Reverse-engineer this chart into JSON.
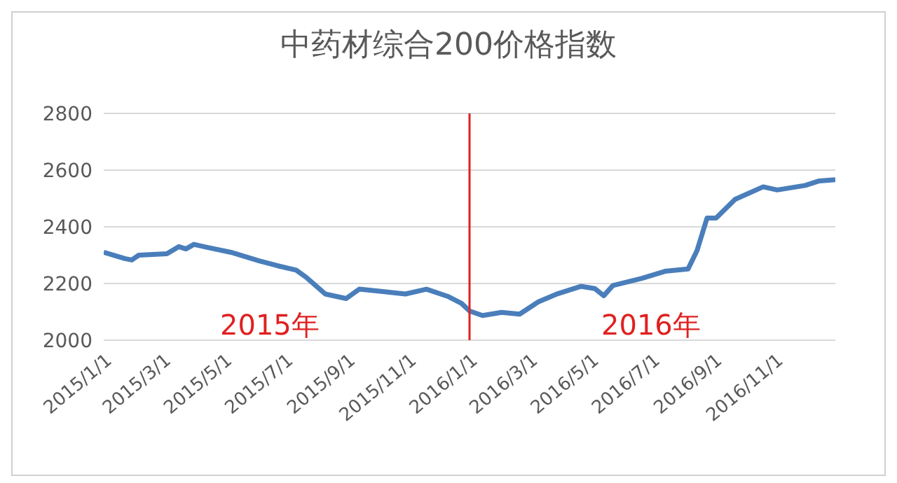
{
  "chart_data": {
    "type": "line",
    "title": "中药材综合200价格指数",
    "x": [
      "2015-01-01",
      "2015-01-22",
      "2015-01-29",
      "2015-02-05",
      "2015-03-05",
      "2015-03-17",
      "2015-03-24",
      "2015-04-01",
      "2015-04-15",
      "2015-05-08",
      "2015-06-05",
      "2015-06-23",
      "2015-07-12",
      "2015-07-22",
      "2015-08-10",
      "2015-08-31",
      "2015-09-13",
      "2015-10-05",
      "2015-10-29",
      "2015-11-19",
      "2015-12-10",
      "2015-12-24",
      "2016-01-01",
      "2016-01-14",
      "2016-02-02",
      "2016-02-20",
      "2016-03-10",
      "2016-03-29",
      "2016-04-21",
      "2016-05-05",
      "2016-05-14",
      "2016-05-23",
      "2016-06-21",
      "2016-07-14",
      "2016-08-06",
      "2016-08-15",
      "2016-08-25",
      "2016-09-03",
      "2016-09-22",
      "2016-10-20",
      "2016-11-03",
      "2016-12-01",
      "2016-12-15",
      "2016-12-31"
    ],
    "series": [
      {
        "color": "#4a7ebb",
        "values": [
          2310,
          2288,
          2283,
          2300,
          2305,
          2330,
          2322,
          2338,
          2327,
          2310,
          2280,
          2263,
          2247,
          2222,
          2163,
          2147,
          2180,
          2172,
          2163,
          2180,
          2155,
          2130,
          2103,
          2087,
          2098,
          2092,
          2136,
          2164,
          2190,
          2182,
          2157,
          2193,
          2218,
          2243,
          2251,
          2316,
          2431,
          2431,
          2497,
          2541,
          2530,
          2546,
          2562,
          2566
        ]
      }
    ],
    "xlim": [
      "2015-01-01",
      "2016-12-31"
    ],
    "xticks": [
      {
        "value": "2015-01-01",
        "label": "2015/1/1"
      },
      {
        "value": "2015-03-01",
        "label": "2015/3/1"
      },
      {
        "value": "2015-05-01",
        "label": "2015/5/1"
      },
      {
        "value": "2015-07-01",
        "label": "2015/7/1"
      },
      {
        "value": "2015-09-01",
        "label": "2015/9/1"
      },
      {
        "value": "2015-11-01",
        "label": "2015/11/1"
      },
      {
        "value": "2016-01-01",
        "label": "2016/1/1"
      },
      {
        "value": "2016-03-01",
        "label": "2016/3/1"
      },
      {
        "value": "2016-05-01",
        "label": "2016/5/1"
      },
      {
        "value": "2016-07-01",
        "label": "2016/7/1"
      },
      {
        "value": "2016-09-01",
        "label": "2016/9/1"
      },
      {
        "value": "2016-11-01",
        "label": "2016/11/1"
      }
    ],
    "ylim": [
      2000,
      2800
    ],
    "yticks": [
      2000,
      2200,
      2400,
      2600,
      2800
    ],
    "grid": "y",
    "legend": false,
    "marker": "none",
    "line_style": "solid",
    "ref_lines": [
      {
        "axis": "x",
        "value": "2016-01-01",
        "color": "#e02020"
      }
    ],
    "annotations": [
      "2015年",
      "2016年"
    ]
  }
}
